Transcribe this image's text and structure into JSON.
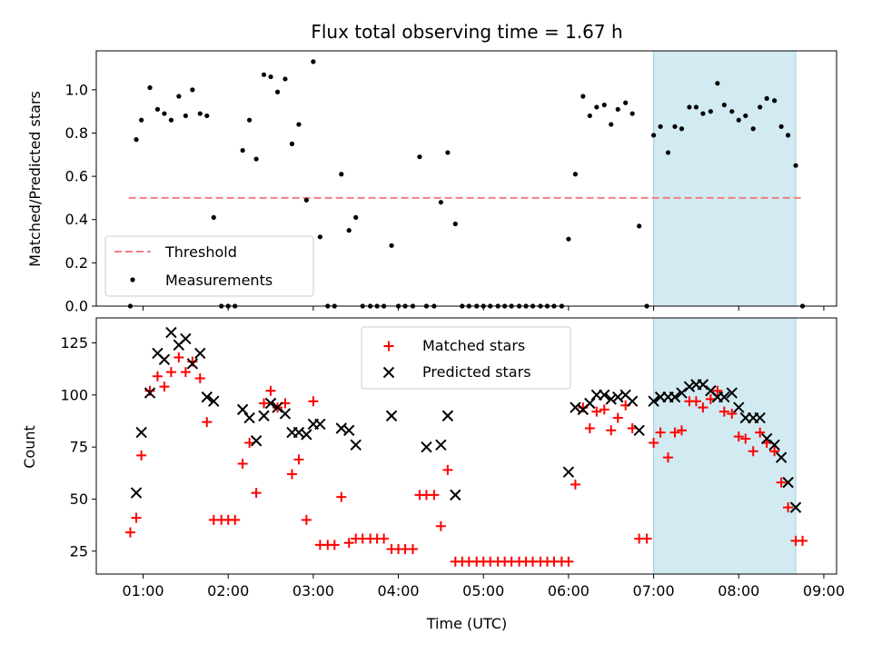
{
  "title": "Flux total observing time = 1.67 h",
  "colors": {
    "threshold": "#f08080",
    "measurement": "#000000",
    "matched": "#ff0000",
    "predicted": "#000000",
    "highlight": "#add8e6"
  },
  "chart_data": [
    {
      "type": "scatter",
      "ylabel": "Matched/Predicted stars",
      "ylim": [
        0,
        1.18
      ],
      "yticks": [
        0.0,
        0.2,
        0.4,
        0.6,
        0.8,
        1.0
      ],
      "ytick_labels": [
        "0.0",
        "0.2",
        "0.4",
        "0.6",
        "0.8",
        "1.0"
      ],
      "xlim": [
        0.45,
        9.15
      ],
      "highlight_span": [
        7.0,
        8.67
      ],
      "legend": {
        "position": "lower-left",
        "entries": [
          "Threshold",
          "Measurements"
        ]
      },
      "threshold": {
        "name": "Threshold",
        "value": 0.5,
        "x_range": [
          0.83,
          8.77
        ]
      },
      "measurements": {
        "name": "Measurements",
        "x": [
          0.85,
          0.92,
          0.98,
          1.08,
          1.17,
          1.25,
          1.33,
          1.42,
          1.5,
          1.58,
          1.67,
          1.75,
          1.83,
          1.92,
          2.0,
          2.08,
          2.17,
          2.25,
          2.33,
          2.42,
          2.5,
          2.58,
          2.67,
          2.75,
          2.83,
          2.92,
          3.0,
          3.08,
          3.17,
          3.25,
          3.33,
          3.42,
          3.5,
          3.58,
          3.67,
          3.75,
          3.83,
          3.92,
          4.0,
          4.08,
          4.17,
          4.25,
          4.33,
          4.42,
          4.5,
          4.58,
          4.67,
          4.75,
          4.83,
          4.92,
          5.0,
          5.08,
          5.17,
          5.25,
          5.33,
          5.42,
          5.5,
          5.58,
          5.67,
          5.75,
          5.83,
          5.92,
          6.0,
          6.08,
          6.17,
          6.25,
          6.33,
          6.42,
          6.5,
          6.58,
          6.67,
          6.75,
          6.83,
          6.92,
          7.0,
          7.08,
          7.17,
          7.25,
          7.33,
          7.42,
          7.5,
          7.58,
          7.67,
          7.75,
          7.83,
          7.92,
          8.0,
          8.08,
          8.17,
          8.25,
          8.33,
          8.42,
          8.5,
          8.58,
          8.67,
          8.75
        ],
        "y": [
          0.0,
          0.77,
          0.86,
          1.01,
          0.91,
          0.89,
          0.86,
          0.97,
          0.88,
          1.0,
          0.89,
          0.88,
          0.41,
          0.0,
          0.0,
          0.0,
          0.72,
          0.86,
          0.68,
          1.07,
          1.06,
          0.99,
          1.05,
          0.75,
          0.84,
          0.49,
          1.13,
          0.32,
          0.0,
          0.0,
          0.61,
          0.35,
          0.41,
          0.0,
          0.0,
          0.0,
          0.0,
          0.28,
          0.0,
          0.0,
          0.0,
          0.69,
          0.0,
          0.0,
          0.48,
          0.71,
          0.38,
          0.0,
          0.0,
          0.0,
          0.0,
          0.0,
          0.0,
          0.0,
          0.0,
          0.0,
          0.0,
          0.0,
          0.0,
          0.0,
          0.0,
          0.0,
          0.31,
          0.61,
          0.97,
          0.88,
          0.92,
          0.93,
          0.84,
          0.91,
          0.94,
          0.89,
          0.37,
          0.0,
          0.79,
          0.83,
          0.71,
          0.83,
          0.82,
          0.92,
          0.92,
          0.89,
          0.9,
          1.03,
          0.93,
          0.9,
          0.86,
          0.88,
          0.82,
          0.92,
          0.96,
          0.95,
          0.83,
          0.79,
          0.65,
          0.0
        ]
      }
    },
    {
      "type": "scatter",
      "xlabel": "Time (UTC)",
      "ylabel": "Count",
      "ylim": [
        14,
        137
      ],
      "yticks": [
        25,
        50,
        75,
        100,
        125
      ],
      "ytick_labels": [
        "25",
        "50",
        "75",
        "100",
        "125"
      ],
      "xlim": [
        0.45,
        9.15
      ],
      "xticks": [
        1,
        2,
        3,
        4,
        5,
        6,
        7,
        8,
        9
      ],
      "xtick_labels": [
        "01:00",
        "02:00",
        "03:00",
        "04:00",
        "05:00",
        "06:00",
        "07:00",
        "08:00",
        "09:00"
      ],
      "highlight_span": [
        7.0,
        8.67
      ],
      "legend": {
        "position": "upper-center",
        "entries": [
          "Matched stars",
          "Predicted stars"
        ]
      },
      "series": [
        {
          "name": "Matched stars",
          "marker": "plus",
          "x": [
            0.85,
            0.92,
            0.98,
            1.08,
            1.17,
            1.25,
            1.33,
            1.42,
            1.5,
            1.58,
            1.67,
            1.75,
            1.83,
            1.92,
            2.0,
            2.08,
            2.17,
            2.25,
            2.33,
            2.42,
            2.5,
            2.58,
            2.67,
            2.75,
            2.83,
            2.92,
            3.0,
            3.08,
            3.17,
            3.25,
            3.33,
            3.42,
            3.5,
            3.58,
            3.67,
            3.75,
            3.83,
            3.92,
            4.0,
            4.08,
            4.17,
            4.25,
            4.33,
            4.42,
            4.5,
            4.58,
            4.67,
            4.75,
            4.83,
            4.92,
            5.0,
            5.08,
            5.17,
            5.25,
            5.33,
            5.42,
            5.5,
            5.58,
            5.67,
            5.75,
            5.83,
            5.92,
            6.0,
            6.08,
            6.17,
            6.25,
            6.33,
            6.42,
            6.5,
            6.58,
            6.67,
            6.75,
            6.83,
            6.92,
            7.0,
            7.08,
            7.17,
            7.25,
            7.33,
            7.42,
            7.5,
            7.58,
            7.67,
            7.75,
            7.83,
            7.92,
            8.0,
            8.08,
            8.17,
            8.25,
            8.33,
            8.42,
            8.5,
            8.58,
            8.67,
            8.75
          ],
          "y": [
            34,
            41,
            71,
            102,
            109,
            104,
            111,
            118,
            111,
            116,
            108,
            87,
            40,
            40,
            40,
            40,
            67,
            77,
            53,
            96,
            102,
            94,
            96,
            62,
            69,
            40,
            97,
            28,
            28,
            28,
            51,
            29,
            31,
            31,
            31,
            31,
            31,
            26,
            26,
            26,
            26,
            52,
            52,
            52,
            37,
            64,
            20,
            20,
            20,
            20,
            20,
            20,
            20,
            20,
            20,
            20,
            20,
            20,
            20,
            20,
            20,
            20,
            20,
            57,
            94,
            84,
            92,
            93,
            83,
            89,
            95,
            84,
            31,
            31,
            77,
            82,
            70,
            82,
            83,
            97,
            97,
            94,
            98,
            102,
            92,
            91,
            80,
            79,
            73,
            82,
            77,
            73,
            58,
            46,
            30,
            30
          ]
        },
        {
          "name": "Predicted stars",
          "marker": "x",
          "x": [
            0.92,
            0.98,
            1.08,
            1.17,
            1.25,
            1.33,
            1.42,
            1.5,
            1.58,
            1.67,
            1.75,
            1.83,
            2.17,
            2.25,
            2.33,
            2.42,
            2.5,
            2.58,
            2.67,
            2.75,
            2.83,
            2.92,
            3.0,
            3.08,
            3.33,
            3.42,
            3.5,
            3.92,
            4.33,
            4.5,
            4.58,
            4.67,
            6.0,
            6.08,
            6.17,
            6.25,
            6.33,
            6.42,
            6.5,
            6.58,
            6.67,
            6.75,
            6.83,
            7.0,
            7.08,
            7.17,
            7.25,
            7.33,
            7.42,
            7.5,
            7.58,
            7.67,
            7.75,
            7.83,
            7.92,
            8.0,
            8.08,
            8.17,
            8.25,
            8.33,
            8.42,
            8.5,
            8.58,
            8.67
          ],
          "y": [
            53,
            82,
            101,
            120,
            117,
            130,
            124,
            127,
            115,
            120,
            99,
            97,
            93,
            89,
            78,
            90,
            96,
            94,
            91,
            82,
            82,
            81,
            86,
            86,
            84,
            83,
            76,
            90,
            75,
            76,
            90,
            52,
            63,
            94,
            93,
            96,
            100,
            100,
            98,
            99,
            100,
            97,
            83,
            97,
            99,
            99,
            99,
            101,
            104,
            105,
            105,
            102,
            99,
            99,
            101,
            94,
            89,
            89,
            89,
            79,
            76,
            70,
            58,
            46
          ]
        }
      ]
    }
  ]
}
